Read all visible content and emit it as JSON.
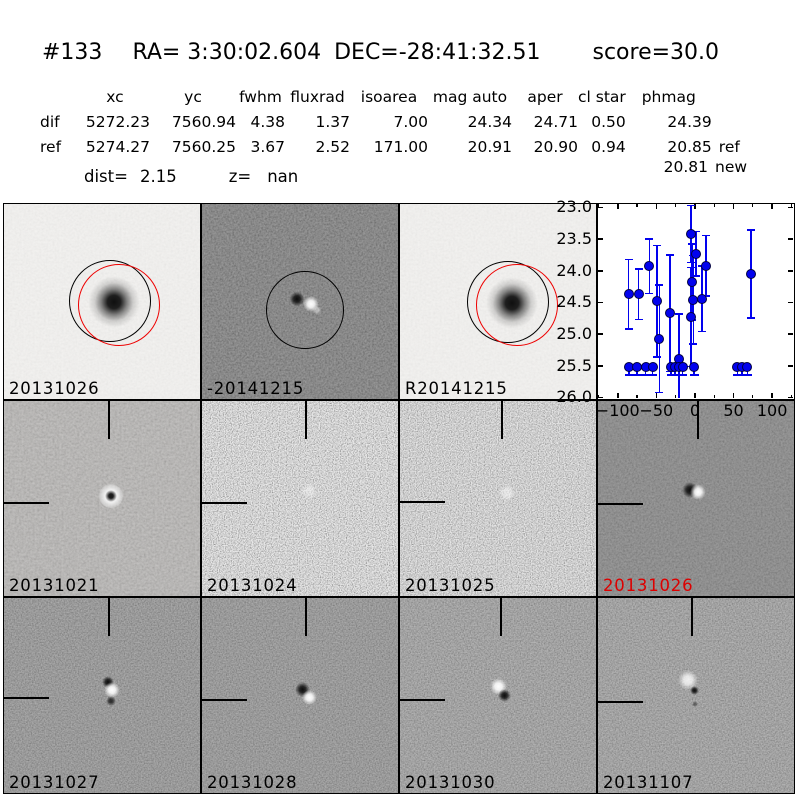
{
  "header": {
    "id": "#133",
    "ra": "RA= 3:30:02.604",
    "dec": "DEC=-28:41:32.51",
    "score": "score=30.0"
  },
  "table": {
    "headers": [
      "xc",
      "yc",
      "fwhm",
      "fluxrad",
      "isoarea",
      "mag auto",
      "aper",
      "cl star",
      "phmag"
    ],
    "rows": [
      {
        "label": "dif",
        "xc": "5272.23",
        "yc": "7560.94",
        "fwhm": "4.38",
        "fluxrad": "1.37",
        "isoarea": "7.00",
        "mag_auto": "24.34",
        "aper": "24.71",
        "cl_star": "0.50",
        "phmag": "24.39",
        "suffix": ""
      },
      {
        "label": "ref",
        "xc": "5274.27",
        "yc": "7560.25",
        "fwhm": "3.67",
        "fluxrad": "2.52",
        "isoarea": "171.00",
        "mag_auto": "20.91",
        "aper": "20.90",
        "cl_star": "0.94",
        "phmag": "20.85",
        "suffix": "ref"
      }
    ],
    "extra": {
      "value": "20.81",
      "suffix": "new"
    },
    "dist_label": "dist=",
    "dist_value": "2.15",
    "z_label": "z=",
    "z_value": "nan"
  },
  "panels": [
    {
      "label": "20131026",
      "color": "#000000"
    },
    {
      "label": "-20141215",
      "color": "#000000"
    },
    {
      "label": "R20141215",
      "color": "#000000"
    },
    {
      "label": "20131021",
      "color": "#000000"
    },
    {
      "label": "20131024",
      "color": "#000000"
    },
    {
      "label": "20131025",
      "color": "#000000"
    },
    {
      "label": "20131026",
      "color": "#dd0000"
    },
    {
      "label": "20131027",
      "color": "#000000"
    },
    {
      "label": "20131028",
      "color": "#000000"
    },
    {
      "label": "20131030",
      "color": "#000000"
    },
    {
      "label": "20131107",
      "color": "#000000"
    }
  ],
  "colors": {
    "accent_red": "#dd0000",
    "marker_blue": "#0202ee",
    "circle_red": "#ee0000"
  },
  "chart_data": {
    "type": "scatter",
    "title": "",
    "xlabel": "",
    "ylabel": "",
    "y_axis_inverted": true,
    "xlim": [
      -125.6,
      127
    ],
    "ylim": [
      26.01,
      22.945
    ],
    "xticks": [
      -100,
      -50,
      0,
      50,
      100
    ],
    "xtick_labels": [
      "−100",
      "−50",
      "0",
      "50",
      "100"
    ],
    "xminor_step": 25,
    "yticks": [
      23.0,
      23.5,
      24.0,
      24.5,
      25.0,
      25.5,
      26.0
    ],
    "ytick_labels": [
      "23.0",
      "23.5",
      "24.0",
      "24.5",
      "25.0",
      "25.5",
      "26.0"
    ],
    "color": "#0202ee",
    "marker": "o",
    "points": [
      {
        "x": -86,
        "y": 24.37,
        "err": 0.55
      },
      {
        "x": -73,
        "y": 24.37,
        "err": 0.4
      },
      {
        "x": -59,
        "y": 23.93,
        "err": 0.43
      },
      {
        "x": -49,
        "y": 24.48,
        "err": 0.88
      },
      {
        "x": -46,
        "y": 25.07,
        "err": 0.85
      },
      {
        "x": -32,
        "y": 24.67,
        "err": 0.92
      },
      {
        "x": -21,
        "y": 25.4,
        "err": 0.72
      },
      {
        "x": -5,
        "y": 23.42,
        "err": 0.45
      },
      {
        "x": 1,
        "y": 23.73,
        "err": 0.35
      },
      {
        "x": -4,
        "y": 24.18,
        "err": 0.6
      },
      {
        "x": -2,
        "y": 24.46,
        "err": 0.7
      },
      {
        "x": -5,
        "y": 24.73,
        "err": 0.78
      },
      {
        "x": 9,
        "y": 24.44,
        "err": 0.52
      },
      {
        "x": 14,
        "y": 23.92,
        "err": 0.48
      },
      {
        "x": 73,
        "y": 24.05,
        "err": 0.7
      }
    ],
    "upper_limits": {
      "y": 25.52,
      "x": [
        -85,
        -75,
        -64,
        -55,
        -31,
        -26,
        -21,
        -16,
        -1,
        55,
        61,
        68
      ]
    }
  }
}
